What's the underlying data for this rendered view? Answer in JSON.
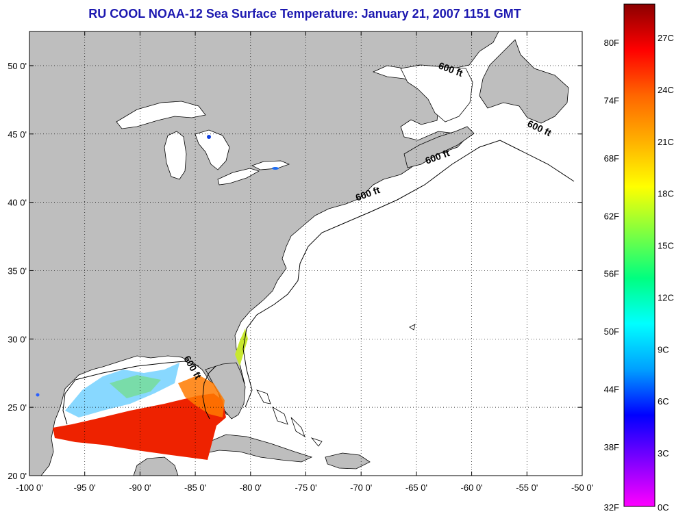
{
  "title": "RU COOL  NOAA-12  Sea Surface Temperature:  January 21, 2007 1151 GMT",
  "map": {
    "lon_range": [
      -100,
      -50
    ],
    "lat_range": [
      20,
      52.5
    ],
    "lon_ticks": [
      -100,
      -95,
      -90,
      -85,
      -80,
      -75,
      -70,
      -65,
      -60,
      -55,
      -50
    ],
    "lat_ticks": [
      20,
      25,
      30,
      35,
      40,
      45,
      50
    ],
    "lon_tick_labels": [
      "-100 0'",
      "-95 0'",
      "-90 0'",
      "-85 0'",
      "-80 0'",
      "-75 0'",
      "-70 0'",
      "-65 0'",
      "-60 0'",
      "-55 0'",
      "-50 0'"
    ],
    "lat_tick_labels": [
      "20 0'",
      "25 0'",
      "30 0'",
      "35 0'",
      "40 0'",
      "45 0'",
      "50 0'"
    ],
    "grid": "dotted",
    "land_color": "#bebebe",
    "ocean_color": "#ffffff",
    "isobath_labels": [
      {
        "text": "600 ft",
        "lon": -62,
        "lat": 49.5,
        "rotate": 20
      },
      {
        "text": "600 ft",
        "lon": -54,
        "lat": 45.2,
        "rotate": 25
      },
      {
        "text": "600 ft",
        "lon": -63,
        "lat": 43.1,
        "rotate": -20
      },
      {
        "text": "600 ft",
        "lon": -69.3,
        "lat": 40.4,
        "rotate": -20
      },
      {
        "text": "600 ft",
        "lon": -85.5,
        "lat": 27.8,
        "rotate": 60
      }
    ]
  },
  "colorbar": {
    "f_labels": [
      "80F",
      "74F",
      "68F",
      "62F",
      "56F",
      "50F",
      "44F",
      "38F",
      "32F"
    ],
    "c_labels": [
      "27C",
      "24C",
      "21C",
      "18C",
      "15C",
      "12C",
      "9C",
      "6C",
      "3C",
      "0C"
    ],
    "colors": [
      "#8b0000",
      "#ff0000",
      "#ff6600",
      "#ffb000",
      "#ffff00",
      "#80ff40",
      "#00ff80",
      "#00ffff",
      "#00a0ff",
      "#0000ff",
      "#8000ff",
      "#ff00ff"
    ]
  }
}
